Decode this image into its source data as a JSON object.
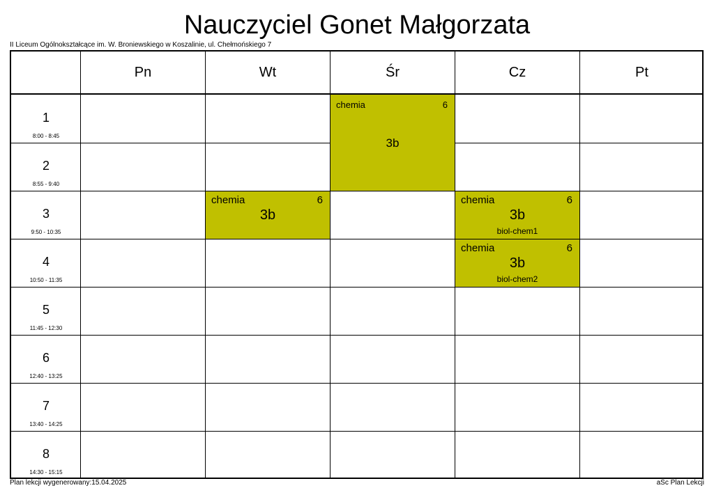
{
  "title": "Nauczyciel Gonet Małgorzata",
  "school": "II Liceum Ogólnokształcące im. W. Broniewskiego w Koszalinie, ul. Chełmońskiego 7",
  "days": [
    "Pn",
    "Wt",
    "Śr",
    "Cz",
    "Pt"
  ],
  "periods": [
    {
      "num": "1",
      "time": "8:00 - 8:45"
    },
    {
      "num": "2",
      "time": "8:55 - 9:40"
    },
    {
      "num": "3",
      "time": "9:50 - 10:35"
    },
    {
      "num": "4",
      "time": "10:50 - 11:35"
    },
    {
      "num": "5",
      "time": "11:45 - 12:30"
    },
    {
      "num": "6",
      "time": "12:40 - 13:25"
    },
    {
      "num": "7",
      "time": "13:40 - 14:25"
    },
    {
      "num": "8",
      "time": "14:30 - 15:15"
    }
  ],
  "lessons": [
    {
      "day": "Śr",
      "period": "1-2",
      "subject": "chemia",
      "room": "6",
      "class": "3b",
      "group": ""
    },
    {
      "day": "Wt",
      "period": "3",
      "subject": "chemia",
      "room": "6",
      "class": "3b",
      "group": ""
    },
    {
      "day": "Cz",
      "period": "3",
      "subject": "chemia",
      "room": "6",
      "class": "3b",
      "group": "biol-chem1"
    },
    {
      "day": "Cz",
      "period": "4",
      "subject": "chemia",
      "room": "6",
      "class": "3b",
      "group": "biol-chem2"
    }
  ],
  "footer": {
    "generated": "Plan lekcji wygenerowany:15.04.2025",
    "brand": "aSc Plan Lekcji"
  },
  "colors": {
    "lesson_bg": "#c0c000"
  }
}
